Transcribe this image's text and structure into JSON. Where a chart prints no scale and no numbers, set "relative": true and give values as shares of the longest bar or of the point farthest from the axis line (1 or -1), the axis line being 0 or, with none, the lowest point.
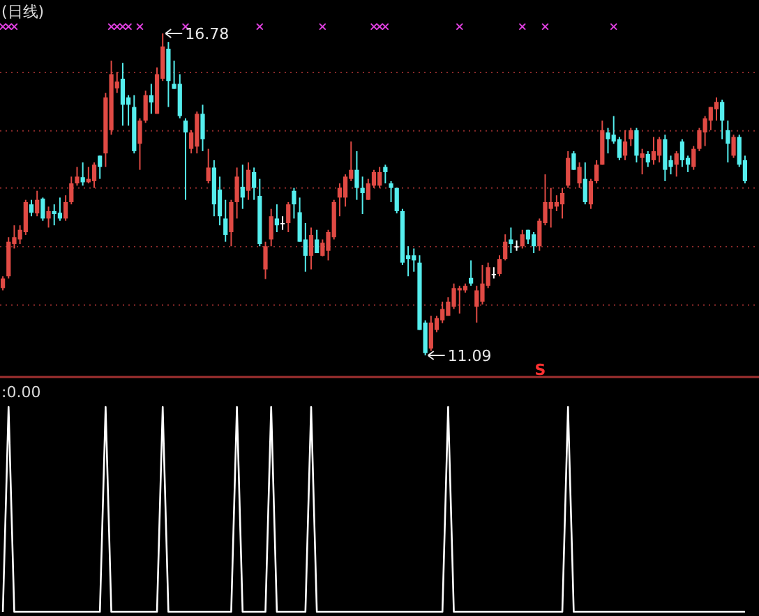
{
  "chart_data": [
    {
      "type": "candlestick",
      "title": "(日线)",
      "categories": [
        null,
        null,
        null,
        null,
        null,
        null,
        null,
        null,
        null,
        null,
        null,
        null,
        null,
        null,
        null,
        null,
        null,
        null,
        null,
        null,
        null,
        null,
        null,
        null,
        null,
        null,
        null,
        null,
        null,
        null,
        null,
        null,
        null,
        null,
        null,
        null,
        null,
        null,
        null,
        null,
        null,
        null,
        null,
        null,
        null,
        null,
        null,
        null,
        null,
        null,
        null,
        null,
        null,
        null,
        null,
        null,
        null,
        null,
        null,
        null,
        null,
        null,
        null,
        null,
        null,
        null,
        null,
        null,
        null,
        null,
        null,
        null,
        null,
        null,
        null,
        null,
        null,
        null,
        null,
        null,
        null,
        null,
        null,
        null,
        null,
        null,
        null,
        null,
        null,
        null,
        null,
        null,
        null,
        null,
        null,
        null,
        null,
        null,
        null,
        null,
        null,
        null,
        null,
        null,
        null,
        null,
        null,
        null,
        null,
        null,
        null,
        null,
        null,
        null,
        null,
        null,
        null,
        null,
        null,
        null,
        null,
        null,
        null,
        null,
        null,
        null,
        null,
        null,
        null,
        null,
        null
      ],
      "yticks": [
        {
          "value": 11.98,
          "label": null
        },
        {
          "value": 13.01,
          "label": null
        },
        {
          "value": 14.05,
          "label": null
        },
        {
          "value": 15.06,
          "label": null
        },
        {
          "value": 16.09,
          "label": null
        }
      ],
      "grid": "y",
      "annotations": [
        "16.78",
        "11.09",
        "S"
      ],
      "series": [
        {
          "type": "candlestick",
          "ohlc": [
            [
              12.28,
              12.49,
              12.24,
              12.45
            ],
            [
              12.49,
              13.18,
              12.45,
              13.1
            ],
            [
              13.06,
              13.39,
              12.98,
              13.18
            ],
            [
              13.14,
              13.39,
              13.06,
              13.31
            ],
            [
              13.27,
              13.84,
              13.22,
              13.8
            ],
            [
              13.76,
              13.84,
              13.55,
              13.61
            ],
            [
              13.6,
              14.0,
              13.55,
              13.84
            ],
            [
              13.86,
              13.88,
              13.47,
              13.51
            ],
            [
              13.51,
              13.72,
              13.35,
              13.64
            ],
            [
              13.64,
              13.76,
              13.39,
              13.59
            ],
            [
              13.61,
              13.88,
              13.47,
              13.51
            ],
            [
              13.51,
              13.92,
              13.47,
              13.8
            ],
            [
              13.8,
              14.25,
              13.76,
              14.13
            ],
            [
              14.13,
              14.42,
              14.09,
              14.25
            ],
            [
              14.24,
              14.5,
              14.09,
              14.15
            ],
            [
              14.15,
              14.42,
              14.13,
              14.21
            ],
            [
              14.17,
              14.5,
              14.05,
              14.46
            ],
            [
              14.62,
              14.62,
              14.21,
              14.42
            ],
            [
              14.66,
              15.73,
              14.42,
              15.65
            ],
            [
              15.07,
              16.3,
              14.99,
              16.06
            ],
            [
              15.81,
              16.1,
              15.73,
              15.93
            ],
            [
              15.98,
              16.26,
              15.15,
              15.52
            ],
            [
              15.65,
              15.69,
              15.15,
              15.52
            ],
            [
              15.48,
              15.69,
              14.66,
              14.7
            ],
            [
              14.83,
              15.28,
              14.37,
              15.24
            ],
            [
              15.24,
              15.77,
              15.2,
              15.69
            ],
            [
              15.69,
              15.89,
              15.36,
              15.56
            ],
            [
              15.36,
              16.18,
              15.36,
              16.06
            ],
            [
              15.98,
              16.78,
              15.94,
              16.55
            ],
            [
              16.51,
              16.63,
              15.48,
              15.94
            ],
            [
              15.89,
              16.3,
              15.8,
              15.8
            ],
            [
              15.89,
              16.06,
              15.28,
              15.32
            ],
            [
              15.24,
              15.28,
              13.84,
              15.03
            ],
            [
              14.74,
              15.07,
              14.66,
              15.03
            ],
            [
              14.78,
              15.4,
              14.66,
              15.36
            ],
            [
              15.36,
              15.52,
              14.7,
              14.91
            ],
            [
              14.17,
              14.74,
              14.13,
              14.41
            ],
            [
              14.41,
              14.54,
              13.55,
              13.76
            ],
            [
              14.02,
              14.25,
              13.39,
              13.55
            ],
            [
              13.51,
              13.84,
              13.1,
              13.22
            ],
            [
              13.27,
              13.84,
              13.02,
              13.8
            ],
            [
              13.8,
              14.41,
              13.51,
              14.25
            ],
            [
              14.07,
              14.46,
              13.68,
              13.88
            ],
            [
              14.0,
              14.5,
              13.84,
              14.37
            ],
            [
              14.33,
              14.41,
              13.84,
              14.05
            ],
            [
              13.91,
              14.21,
              13.02,
              13.06
            ],
            [
              12.61,
              13.1,
              12.44,
              13.02
            ],
            [
              13.14,
              13.68,
              13.02,
              13.55
            ],
            [
              13.51,
              13.76,
              13.27,
              13.39
            ],
            [
              13.43,
              13.55,
              13.31,
              13.43
            ],
            [
              13.43,
              13.8,
              13.27,
              13.76
            ],
            [
              14.0,
              14.05,
              13.51,
              13.76
            ],
            [
              13.62,
              13.88,
              13.1,
              13.1
            ],
            [
              13.14,
              13.43,
              12.57,
              12.85
            ],
            [
              12.85,
              13.35,
              12.61,
              13.22
            ],
            [
              13.14,
              13.31,
              12.9,
              12.9
            ],
            [
              12.85,
              13.14,
              12.84,
              13.08
            ],
            [
              12.94,
              13.31,
              12.77,
              13.27
            ],
            [
              13.18,
              13.84,
              13.14,
              13.8
            ],
            [
              13.88,
              14.13,
              13.55,
              14.05
            ],
            [
              13.88,
              14.29,
              13.72,
              14.25
            ],
            [
              14.21,
              14.87,
              14.17,
              14.37
            ],
            [
              14.37,
              14.7,
              13.84,
              14.05
            ],
            [
              14.05,
              14.25,
              13.59,
              13.96
            ],
            [
              13.84,
              14.21,
              13.84,
              14.13
            ],
            [
              14.09,
              14.37,
              14.05,
              14.33
            ],
            [
              14.09,
              14.42,
              14.05,
              14.33
            ],
            [
              14.42,
              14.46,
              14.13,
              14.33
            ],
            [
              14.13,
              14.17,
              13.8,
              14.05
            ],
            [
              14.05,
              14.05,
              13.6,
              13.64
            ],
            [
              13.64,
              13.68,
              12.69,
              12.73
            ],
            [
              12.86,
              13.02,
              12.49,
              12.79
            ],
            [
              12.86,
              12.98,
              12.57,
              12.77
            ],
            [
              12.73,
              12.86,
              11.54,
              11.54
            ],
            [
              11.67,
              11.71,
              11.09,
              11.13
            ],
            [
              11.21,
              11.79,
              11.17,
              11.67
            ],
            [
              11.54,
              11.79,
              11.5,
              11.75
            ],
            [
              11.71,
              12.04,
              11.66,
              11.91
            ],
            [
              11.79,
              12.12,
              11.79,
              12.04
            ],
            [
              11.95,
              12.36,
              11.91,
              12.28
            ],
            [
              12.24,
              12.32,
              11.83,
              12.28
            ],
            [
              12.24,
              12.36,
              12.2,
              12.32
            ],
            [
              12.46,
              12.77,
              12.32,
              12.36
            ],
            [
              11.95,
              12.32,
              11.67,
              12.24
            ],
            [
              12.04,
              12.69,
              11.99,
              12.36
            ],
            [
              12.32,
              12.73,
              12.28,
              12.65
            ],
            [
              12.53,
              12.65,
              12.45,
              12.53
            ],
            [
              12.53,
              12.86,
              12.49,
              12.79
            ],
            [
              12.79,
              13.23,
              12.77,
              13.1
            ],
            [
              13.14,
              13.35,
              12.9,
              13.06
            ],
            [
              13.02,
              13.12,
              12.94,
              13.02
            ],
            [
              13.02,
              13.31,
              12.98,
              13.23
            ],
            [
              13.31,
              13.31,
              13.06,
              13.14
            ],
            [
              13.23,
              13.27,
              12.9,
              13.02
            ],
            [
              13.02,
              13.51,
              12.94,
              13.47
            ],
            [
              13.43,
              14.29,
              13.39,
              13.8
            ],
            [
              13.68,
              14.05,
              13.35,
              13.8
            ],
            [
              13.72,
              13.92,
              13.64,
              13.8
            ],
            [
              13.76,
              14.05,
              13.51,
              13.96
            ],
            [
              14.09,
              14.7,
              14.05,
              14.58
            ],
            [
              14.66,
              14.7,
              14.37,
              14.37
            ],
            [
              14.13,
              14.5,
              14.05,
              14.42
            ],
            [
              14.21,
              14.5,
              13.76,
              13.8
            ],
            [
              13.76,
              14.21,
              13.68,
              14.17
            ],
            [
              14.17,
              14.54,
              14.13,
              14.46
            ],
            [
              14.46,
              15.24,
              14.46,
              15.07
            ],
            [
              15.03,
              15.11,
              14.66,
              14.91
            ],
            [
              14.99,
              15.32,
              14.83,
              14.87
            ],
            [
              14.91,
              14.95,
              14.54,
              14.58
            ],
            [
              14.62,
              15.07,
              14.54,
              14.87
            ],
            [
              14.91,
              15.11,
              14.79,
              15.07
            ],
            [
              15.07,
              15.11,
              14.5,
              14.62
            ],
            [
              14.58,
              14.74,
              14.29,
              14.66
            ],
            [
              14.65,
              14.7,
              14.42,
              14.5
            ],
            [
              14.54,
              14.95,
              14.46,
              14.7
            ],
            [
              14.62,
              14.95,
              14.5,
              14.91
            ],
            [
              14.91,
              14.99,
              14.17,
              14.37
            ],
            [
              14.54,
              14.62,
              14.29,
              14.42
            ],
            [
              14.46,
              14.7,
              14.25,
              14.66
            ],
            [
              14.87,
              14.91,
              14.42,
              14.54
            ],
            [
              14.58,
              14.62,
              14.33,
              14.46
            ],
            [
              14.42,
              14.79,
              14.37,
              14.74
            ],
            [
              14.74,
              15.11,
              14.7,
              15.07
            ],
            [
              15.03,
              15.32,
              14.79,
              15.28
            ],
            [
              15.24,
              15.48,
              15.07,
              15.48
            ],
            [
              15.44,
              15.65,
              15.24,
              15.57
            ],
            [
              15.57,
              15.61,
              14.91,
              15.24
            ],
            [
              15.07,
              15.24,
              14.5,
              14.83
            ],
            [
              14.62,
              14.99,
              14.58,
              14.95
            ],
            [
              14.95,
              14.99,
              14.42,
              14.46
            ],
            [
              14.54,
              14.62,
              14.13,
              14.17
            ]
          ],
          "colors": [
            "#e04a44",
            "#e04a44",
            "#e04a44",
            "#e04a44",
            "#e04a44",
            "#55eeee",
            "#e04a44",
            "#55eeee",
            "#e04a44",
            "#55eeee",
            "#55eeee",
            "#e04a44",
            "#e04a44",
            "#e04a44",
            "#55eeee",
            "#e04a44",
            "#e04a44",
            "#55eeee",
            "#e04a44",
            "#e04a44",
            "#e04a44",
            "#55eeee",
            "#55eeee",
            "#55eeee",
            "#e04a44",
            "#e04a44",
            "#55eeee",
            "#e04a44",
            "#e04a44",
            "#55eeee",
            "#55eeee",
            "#55eeee",
            "#55eeee",
            "#e04a44",
            "#e04a44",
            "#55eeee",
            "#e04a44",
            "#55eeee",
            "#55eeee",
            "#55eeee",
            "#e04a44",
            "#e04a44",
            "#55eeee",
            "#e04a44",
            "#55eeee",
            "#55eeee",
            "#e04a44",
            "#e04a44",
            "#55eeee",
            "#ffffff",
            "#e04a44",
            "#55eeee",
            "#55eeee",
            "#55eeee",
            "#e04a44",
            "#55eeee",
            "#e04a44",
            "#e04a44",
            "#e04a44",
            "#e04a44",
            "#e04a44",
            "#e04a44",
            "#55eeee",
            "#55eeee",
            "#e04a44",
            "#e04a44",
            "#e04a44",
            "#55eeee",
            "#55eeee",
            "#55eeee",
            "#55eeee",
            "#55eeee",
            "#55eeee",
            "#55eeee",
            "#55eeee",
            "#e04a44",
            "#e04a44",
            "#e04a44",
            "#e04a44",
            "#e04a44",
            "#e04a44",
            "#e04a44",
            "#55eeee",
            "#e04a44",
            "#e04a44",
            "#e04a44",
            "#ffffff",
            "#e04a44",
            "#e04a44",
            "#55eeee",
            "#ffffff",
            "#e04a44",
            "#55eeee",
            "#55eeee",
            "#e04a44",
            "#e04a44",
            "#e04a44",
            "#e04a44",
            "#e04a44",
            "#e04a44",
            "#55eeee",
            "#e04a44",
            "#55eeee",
            "#e04a44",
            "#e04a44",
            "#e04a44",
            "#55eeee",
            "#55eeee",
            "#55eeee",
            "#e04a44",
            "#e04a44",
            "#55eeee",
            "#e04a44",
            "#55eeee",
            "#e04a44",
            "#e04a44",
            "#55eeee",
            "#55eeee",
            "#e04a44",
            "#55eeee",
            "#55eeee",
            "#e04a44",
            "#e04a44",
            "#e04a44",
            "#e04a44",
            "#e04a44",
            "#55eeee",
            "#55eeee",
            "#e04a44",
            "#55eeee",
            "#55eeee"
          ]
        },
        {
          "type": "scatter",
          "color": "#e040e0",
          "marker": "cross",
          "values": [
            16.9,
            16.9,
            16.9,
            null,
            null,
            null,
            null,
            null,
            null,
            null,
            null,
            null,
            null,
            null,
            null,
            null,
            null,
            null,
            null,
            16.9,
            16.9,
            16.9,
            16.9,
            null,
            16.9,
            null,
            null,
            null,
            null,
            null,
            null,
            null,
            16.9,
            null,
            null,
            null,
            null,
            null,
            null,
            null,
            null,
            null,
            null,
            null,
            null,
            16.9,
            null,
            null,
            null,
            null,
            null,
            null,
            null,
            null,
            null,
            null,
            16.9,
            null,
            null,
            null,
            null,
            null,
            null,
            null,
            null,
            16.9,
            16.9,
            16.9,
            null,
            null,
            null,
            null,
            null,
            null,
            null,
            null,
            null,
            null,
            null,
            null,
            16.9,
            null,
            null,
            null,
            null,
            null,
            null,
            null,
            null,
            null,
            null,
            16.9,
            null,
            null,
            null,
            16.9,
            null,
            null,
            null,
            null,
            null,
            null,
            null,
            null,
            null,
            null,
            null,
            16.9,
            null,
            null,
            null,
            null,
            null,
            null,
            null,
            null,
            null,
            null,
            null,
            null,
            null,
            null,
            null,
            null,
            null,
            null,
            null,
            null,
            null,
            null,
            null
          ]
        }
      ]
    },
    {
      "type": "line",
      "title": ":0.00",
      "relative": true,
      "categories": [
        null,
        null,
        null,
        null,
        null,
        null,
        null,
        null,
        null,
        null,
        null,
        null,
        null,
        null,
        null,
        null,
        null,
        null,
        null,
        null,
        null,
        null,
        null,
        null,
        null,
        null,
        null,
        null,
        null,
        null,
        null,
        null,
        null,
        null,
        null,
        null,
        null,
        null,
        null,
        null,
        null,
        null,
        null,
        null,
        null,
        null,
        null,
        null,
        null,
        null,
        null,
        null,
        null,
        null,
        null,
        null,
        null,
        null,
        null,
        null,
        null,
        null,
        null,
        null,
        null,
        null,
        null,
        null,
        null,
        null,
        null,
        null,
        null,
        null,
        null,
        null,
        null,
        null,
        null,
        null,
        null,
        null,
        null,
        null,
        null,
        null,
        null,
        null,
        null,
        null,
        null,
        null,
        null,
        null,
        null,
        null,
        null,
        null,
        null,
        null,
        null,
        null,
        null,
        null,
        null,
        null,
        null,
        null,
        null,
        null,
        null,
        null,
        null,
        null,
        null,
        null,
        null,
        null,
        null,
        null,
        null,
        null,
        null,
        null,
        null,
        null,
        null,
        null,
        null,
        null,
        null
      ],
      "series": [
        {
          "color": "#ffffff",
          "values": [
            0,
            1,
            0,
            0,
            0,
            0,
            0,
            0,
            0,
            0,
            0,
            0,
            0,
            0,
            0,
            0,
            0,
            0,
            1,
            0,
            0,
            0,
            0,
            0,
            0,
            0,
            0,
            0,
            1,
            0,
            0,
            0,
            0,
            0,
            0,
            0,
            0,
            0,
            0,
            0,
            0,
            1,
            0,
            0,
            0,
            0,
            0,
            1,
            0,
            0,
            0,
            0,
            0,
            0,
            1,
            0,
            0,
            0,
            0,
            0,
            0,
            0,
            0,
            0,
            0,
            0,
            0,
            0,
            0,
            0,
            0,
            0,
            0,
            0,
            0,
            0,
            0,
            0,
            1,
            0,
            0,
            0,
            0,
            0,
            0,
            0,
            0,
            0,
            0,
            0,
            0,
            0,
            0,
            0,
            0,
            0,
            0,
            0,
            0,
            1,
            0,
            0,
            0,
            0,
            0,
            0,
            0,
            0,
            0,
            0,
            0,
            0,
            0,
            0,
            0,
            0,
            0,
            0,
            0,
            0,
            0,
            0,
            0,
            0,
            0,
            0,
            0,
            0,
            0,
            0,
            0
          ]
        }
      ]
    }
  ]
}
